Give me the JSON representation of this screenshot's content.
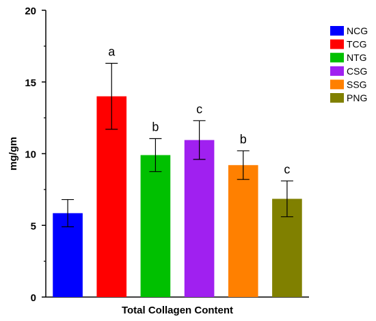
{
  "chart_data": {
    "type": "bar",
    "title": "",
    "xlabel": "Total Collagen Content",
    "ylabel": "mg/gm",
    "ylim": [
      0,
      20
    ],
    "yticks": [
      0,
      5,
      10,
      15,
      20
    ],
    "grid": false,
    "legend_position": "top-right",
    "series": [
      {
        "name": "NCG",
        "color": "#0000ff",
        "value": 5.85,
        "error": 0.95,
        "label": ""
      },
      {
        "name": "TCG",
        "color": "#ff0000",
        "value": 14.0,
        "error": 2.3,
        "label": "a"
      },
      {
        "name": "NTG",
        "color": "#00c000",
        "value": 9.9,
        "error": 1.15,
        "label": "b"
      },
      {
        "name": "CSG",
        "color": "#a020f0",
        "value": 10.95,
        "error": 1.35,
        "label": "c"
      },
      {
        "name": "SSG",
        "color": "#ff8000",
        "value": 9.2,
        "error": 1.0,
        "label": "b"
      },
      {
        "name": "PNG",
        "color": "#808000",
        "value": 6.85,
        "error": 1.25,
        "label": "c"
      }
    ]
  }
}
